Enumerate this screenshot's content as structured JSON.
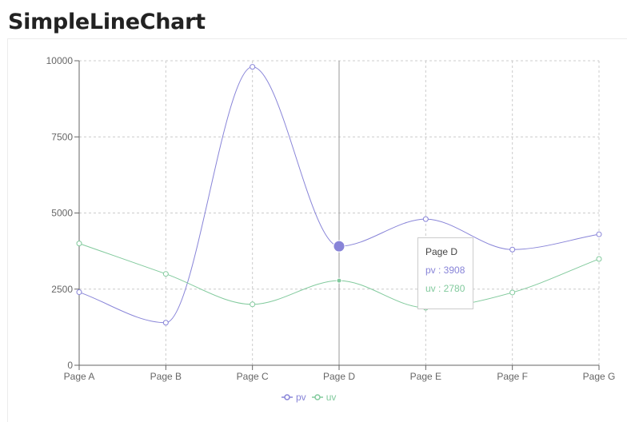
{
  "page": {
    "title": "SimpleLineChart"
  },
  "chart_data": {
    "type": "line",
    "categories": [
      "Page A",
      "Page B",
      "Page C",
      "Page D",
      "Page E",
      "Page F",
      "Page G"
    ],
    "series": [
      {
        "name": "pv",
        "color": "#8884d8",
        "values": [
          2400,
          1398,
          9800,
          3908,
          4800,
          3800,
          4300
        ]
      },
      {
        "name": "uv",
        "color": "#82ca9d",
        "values": [
          4000,
          3000,
          2000,
          2780,
          1890,
          2390,
          3490
        ]
      }
    ],
    "ylim": [
      0,
      10000
    ],
    "yticks": [
      "0",
      "2500",
      "5000",
      "7500",
      "10000"
    ],
    "grid": true,
    "legend": "bottom-center",
    "active_index": 3
  },
  "tooltip": {
    "label": "Page D",
    "rows": [
      {
        "text": "pv : 3908",
        "color": "#8884d8"
      },
      {
        "text": "uv : 2780",
        "color": "#82ca9d"
      }
    ]
  },
  "legend": {
    "items": [
      "pv",
      "uv"
    ]
  }
}
